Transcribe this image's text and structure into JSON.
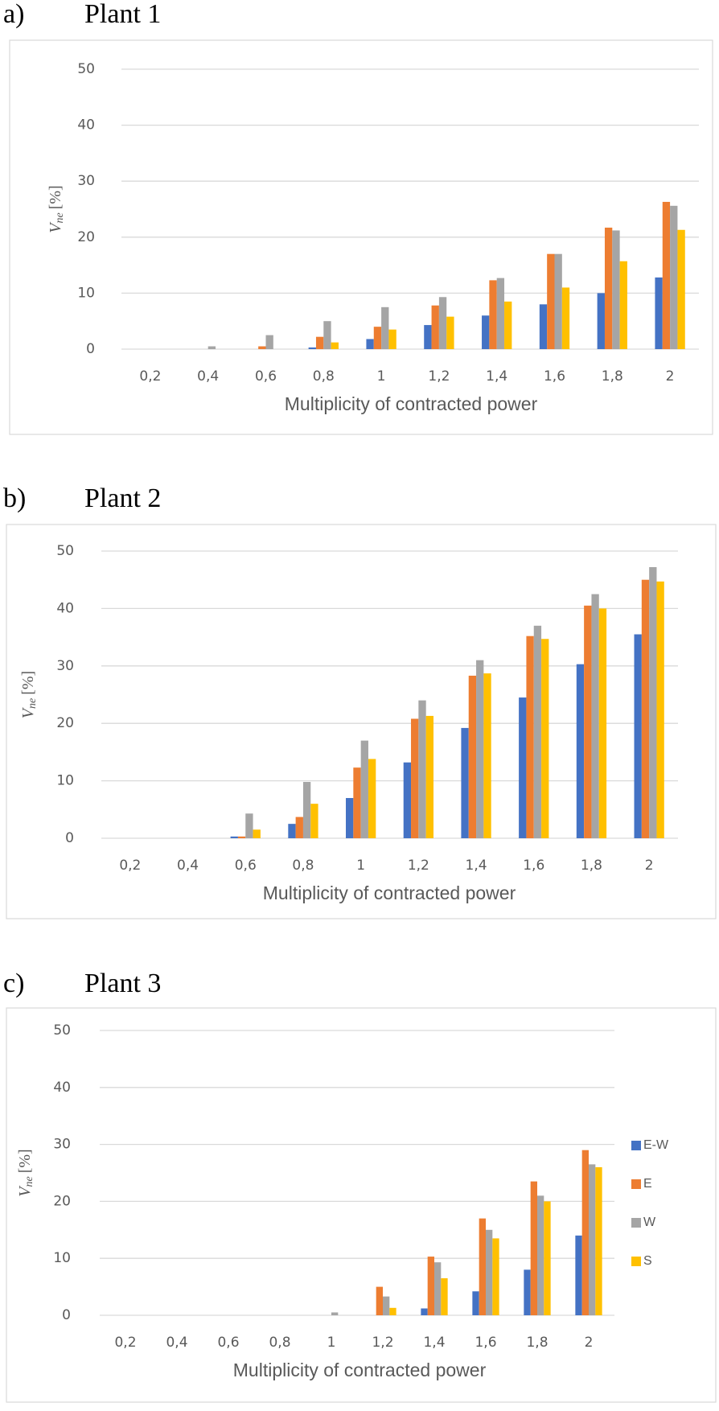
{
  "chart_data": [
    {
      "type": "bar",
      "label": "a)",
      "title": "Plant 1",
      "ylabel": [
        "V",
        "ne",
        "[%]"
      ],
      "xlabel": "Multiplicity of contracted power",
      "categories": [
        "0,2",
        "0,4",
        "0,6",
        "0,8",
        "1",
        "1,2",
        "1,4",
        "1,6",
        "1,8",
        "2"
      ],
      "series": [
        {
          "color": "#4472c4",
          "values": [
            0,
            0,
            0,
            0.3,
            1.8,
            4.3,
            6,
            8,
            10,
            12.8
          ]
        },
        {
          "color": "#ed7d31",
          "values": [
            0,
            0,
            0.5,
            2.2,
            4,
            7.8,
            12.3,
            17,
            21.7,
            26.3
          ]
        },
        {
          "color": "#a5a5a5",
          "values": [
            0,
            0.5,
            2.5,
            5,
            7.5,
            9.3,
            12.7,
            17,
            21.2,
            25.6
          ]
        },
        {
          "color": "#ffc000",
          "values": [
            0,
            0,
            0,
            1.2,
            3.5,
            5.8,
            8.5,
            11,
            15.7,
            21.3
          ]
        }
      ],
      "ylim": [
        0,
        50
      ],
      "yticks": [
        0,
        10,
        20,
        30,
        40,
        50
      ],
      "grid": true
    },
    {
      "type": "bar",
      "label": "b)",
      "title": "Plant 2",
      "ylabel": [
        "V",
        "ne",
        "[%]"
      ],
      "xlabel": "Multiplicity of contracted power",
      "categories": [
        "0,2",
        "0,4",
        "0,6",
        "0,8",
        "1",
        "1,2",
        "1,4",
        "1,6",
        "1,8",
        "2"
      ],
      "series": [
        {
          "color": "#4472c4",
          "values": [
            0,
            0,
            0.3,
            2.5,
            7,
            13.2,
            19.2,
            24.5,
            30.3,
            35.5
          ]
        },
        {
          "color": "#ed7d31",
          "values": [
            0,
            0,
            0.3,
            3.7,
            12.3,
            20.8,
            28.3,
            35.2,
            40.5,
            45
          ]
        },
        {
          "color": "#a5a5a5",
          "values": [
            0,
            0,
            4.3,
            9.8,
            17,
            24,
            31,
            37,
            42.5,
            47.2
          ]
        },
        {
          "color": "#ffc000",
          "values": [
            0,
            0,
            1.5,
            6,
            13.8,
            21.3,
            28.7,
            34.7,
            40,
            44.7
          ]
        }
      ],
      "ylim": [
        0,
        50
      ],
      "yticks": [
        0,
        10,
        20,
        30,
        40,
        50
      ],
      "grid": true
    },
    {
      "type": "bar",
      "label": "c)",
      "title": "Plant 3",
      "ylabel": [
        "V",
        "ne",
        "[%]"
      ],
      "xlabel": "Multiplicity of contracted power",
      "categories": [
        "0,2",
        "0,4",
        "0,6",
        "0,8",
        "1",
        "1,2",
        "1,4",
        "1,6",
        "1,8",
        "2"
      ],
      "series": [
        {
          "name": "E-W",
          "color": "#4472c4",
          "values": [
            0,
            0,
            0,
            0,
            0,
            0,
            1.2,
            4.2,
            8,
            14
          ]
        },
        {
          "name": "E",
          "color": "#ed7d31",
          "values": [
            0,
            0,
            0,
            0,
            0,
            5,
            10.3,
            17,
            23.5,
            29
          ]
        },
        {
          "name": "W",
          "color": "#a5a5a5",
          "values": [
            0,
            0,
            0,
            0,
            0.5,
            3.3,
            9.3,
            15,
            21,
            26.5
          ]
        },
        {
          "name": "S",
          "color": "#ffc000",
          "values": [
            0,
            0,
            0,
            0,
            0,
            1.3,
            6.5,
            13.5,
            20,
            26
          ]
        }
      ],
      "ylim": [
        0,
        50
      ],
      "yticks": [
        0,
        10,
        20,
        30,
        40,
        50
      ],
      "grid": true,
      "legend": "right"
    }
  ]
}
